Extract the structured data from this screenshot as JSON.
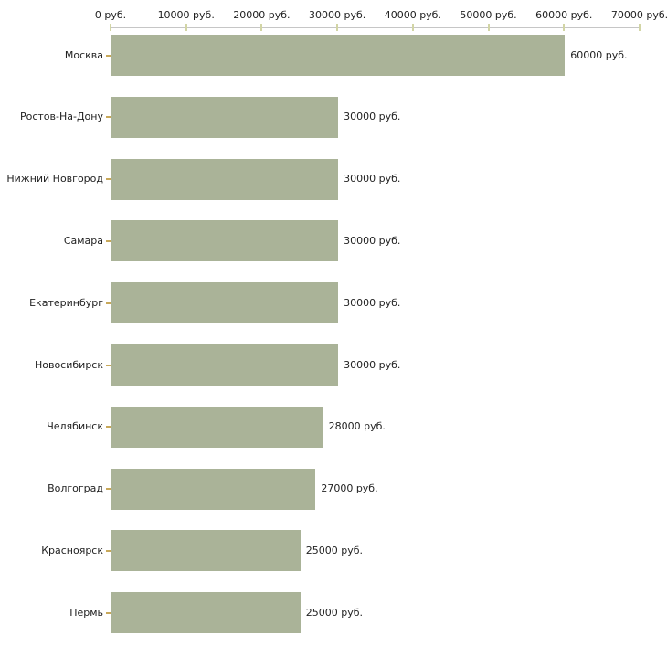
{
  "chart_data": {
    "type": "bar",
    "orientation": "horizontal",
    "title": "",
    "xlabel": "",
    "ylabel": "",
    "xlim": [
      0,
      70000
    ],
    "grid": false,
    "legend": false,
    "categories": [
      "Москва",
      "Ростов-На-Дону",
      "Нижний Новгород",
      "Самара",
      "Екатеринбург",
      "Новосибирск",
      "Челябинск",
      "Волгоград",
      "Красноярск",
      "Пермь"
    ],
    "values": [
      60000,
      30000,
      30000,
      30000,
      30000,
      30000,
      28000,
      27000,
      25000,
      25000
    ],
    "value_labels": [
      "60000 руб.",
      "30000 руб.",
      "30000 руб.",
      "30000 руб.",
      "30000 руб.",
      "30000 руб.",
      "28000 руб.",
      "27000 руб.",
      "25000 руб.",
      "25000 руб."
    ],
    "x_tick_values": [
      0,
      10000,
      20000,
      30000,
      40000,
      50000,
      60000,
      70000
    ],
    "x_tick_labels": [
      "0 руб.",
      "10000 руб.",
      "20000 руб.",
      "30000 руб.",
      "40000 руб.",
      "50000 руб.",
      "60000 руб.",
      "70000 руб."
    ],
    "colors": {
      "bar": "#aab398",
      "axis_line": "#c6c6c6",
      "x_tick": "#d2d5a5",
      "y_tick": "#c8a85a",
      "text": "#222222",
      "background": "#ffffff"
    }
  }
}
